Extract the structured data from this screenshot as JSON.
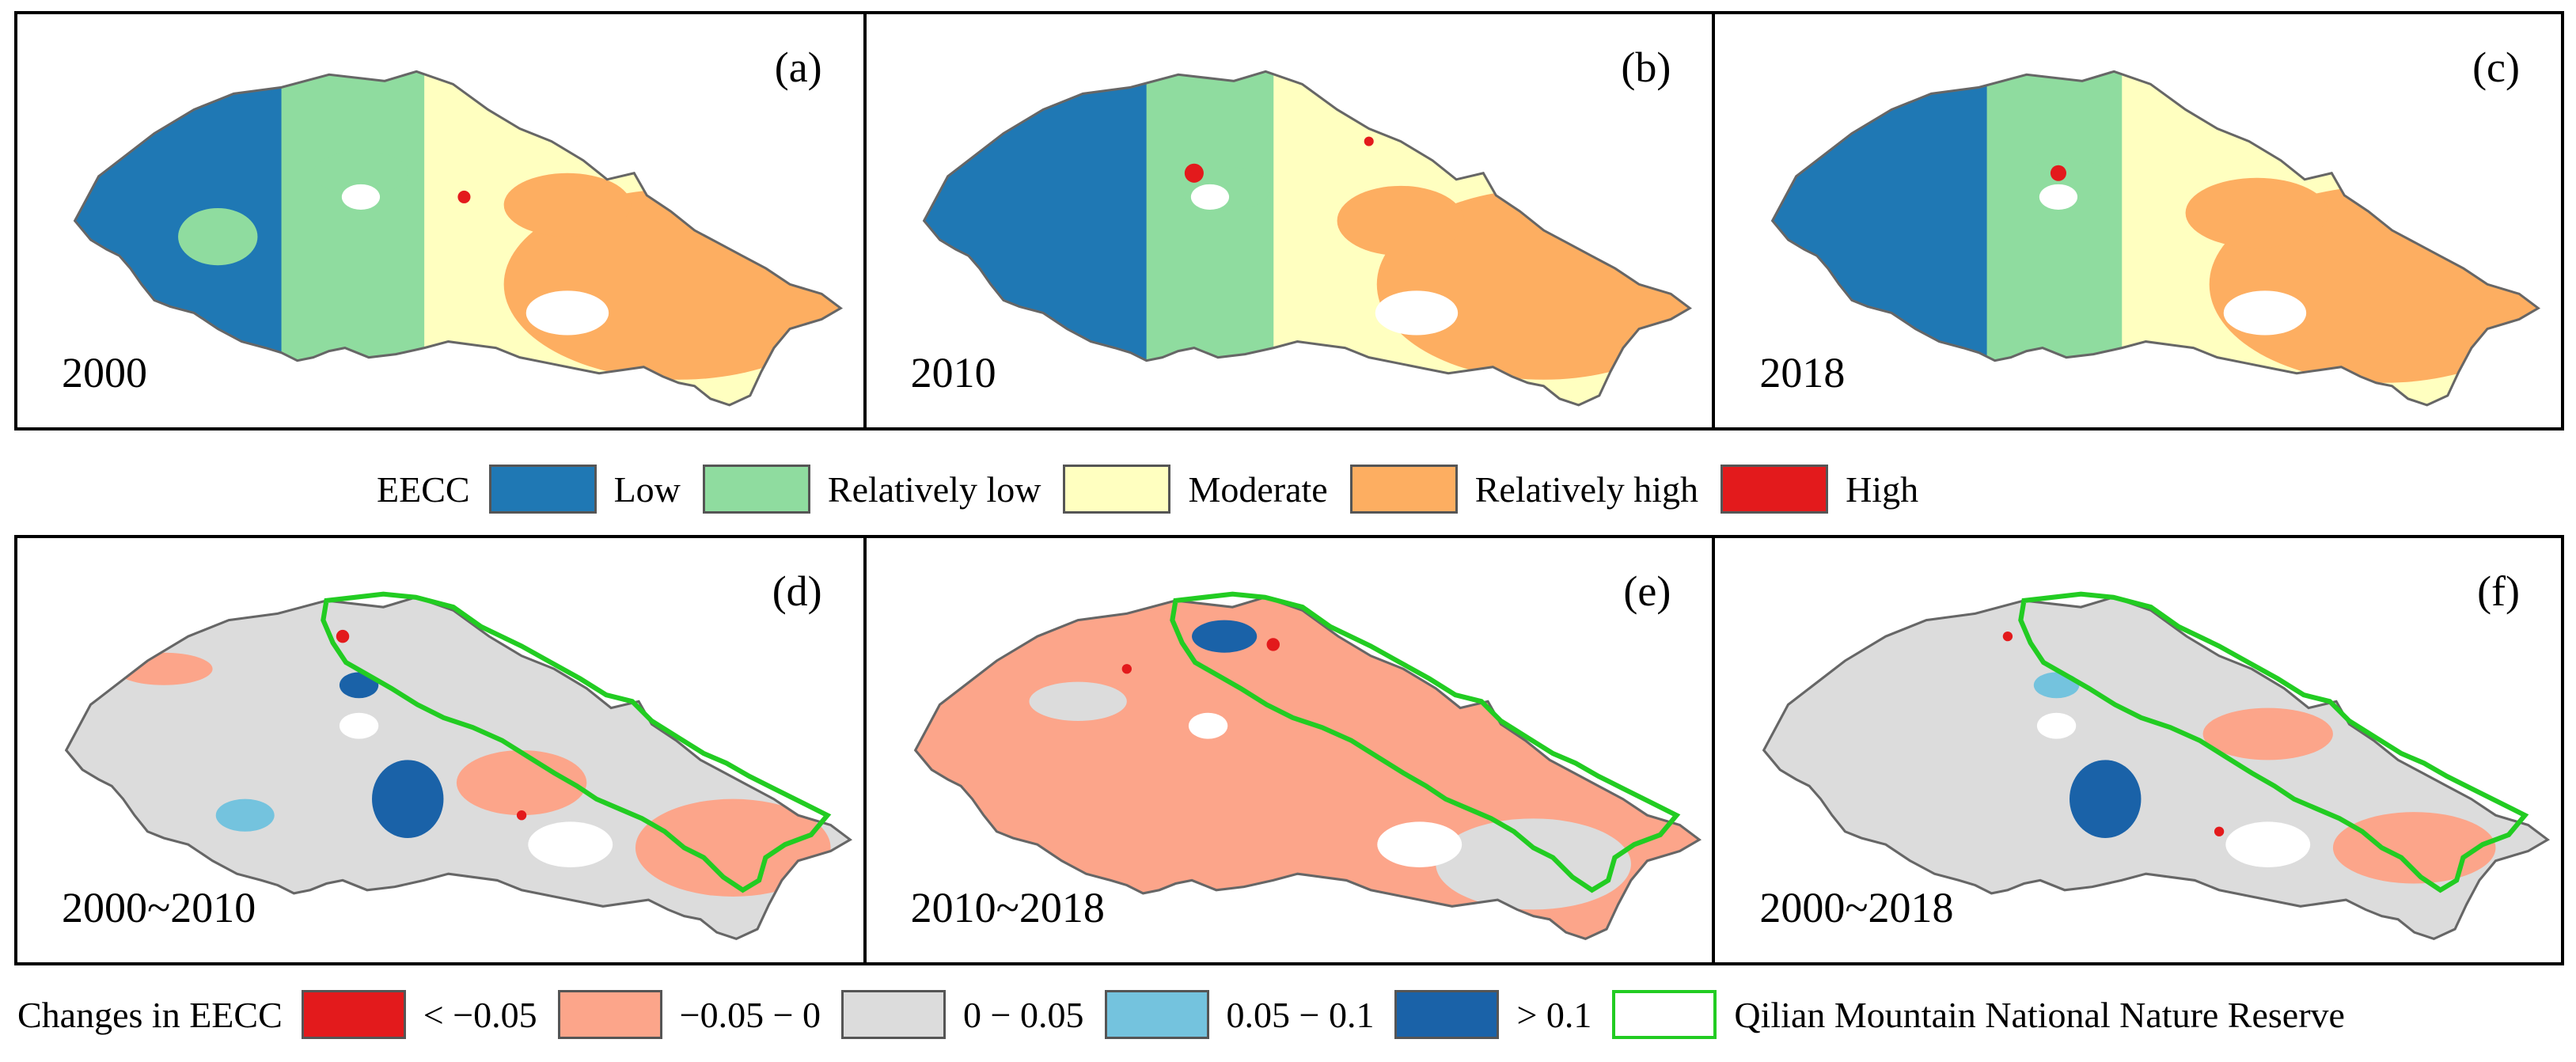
{
  "status_panels": [
    {
      "id": "a",
      "label": "(a)",
      "year": "2000"
    },
    {
      "id": "b",
      "label": "(b)",
      "year": "2010"
    },
    {
      "id": "c",
      "label": "(c)",
      "year": "2018"
    }
  ],
  "change_panels": [
    {
      "id": "d",
      "label": "(d)",
      "year": "2000~2010"
    },
    {
      "id": "e",
      "label": "(e)",
      "year": "2010~2018"
    },
    {
      "id": "f",
      "label": "(f)",
      "year": "2000~2018"
    }
  ],
  "legend_eecc": {
    "title": "EECC",
    "items": [
      {
        "label": "Low",
        "color": "#1f78b4"
      },
      {
        "label": "Relatively low",
        "color": "#8fdc9f"
      },
      {
        "label": "Moderate",
        "color": "#ffffc0"
      },
      {
        "label": "Relatively high",
        "color": "#fdae61"
      },
      {
        "label": "High",
        "color": "#e31a1c"
      }
    ]
  },
  "legend_change": {
    "title": "Changes in EECC",
    "items": [
      {
        "label": "< −0.05",
        "color": "#e31a1c"
      },
      {
        "label": "−0.05 − 0",
        "color": "#fca58a"
      },
      {
        "label": "0 − 0.05",
        "color": "#dcdcdc"
      },
      {
        "label": "0.05 − 0.1",
        "color": "#74c3de"
      },
      {
        "label": "> 0.1",
        "color": "#1a62a8"
      }
    ],
    "reserve_label": "Qilian Mountain National Nature Reserve",
    "reserve_color": "#22cc22"
  }
}
